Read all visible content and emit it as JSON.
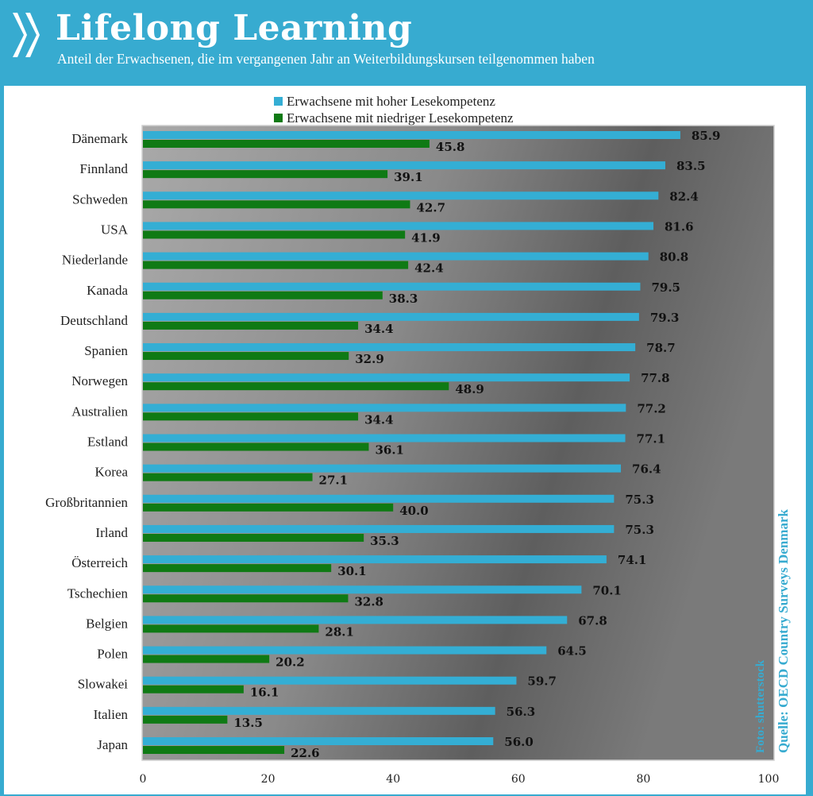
{
  "header": {
    "title": "Lifelong Learning",
    "subtitle": "Anteil der Erwachsenen, die im vergangenen Jahr an Weiterbildungskursen teilgenommen haben",
    "logo": "oecd-chevrons-logo"
  },
  "colors": {
    "brand": "#37abd0",
    "high": "#34aed4",
    "low": "#0f7a14"
  },
  "source": "Quelle: OECD Country Surveys Denmark",
  "photo_credit": "Foto: shutterstock",
  "chart_data": {
    "type": "bar",
    "orientation": "horizontal",
    "title": "Lifelong Learning",
    "categories": [
      "Dänemark",
      "Finnland",
      "Schweden",
      "USA",
      "Niederlande",
      "Kanada",
      "Deutschland",
      "Spanien",
      "Norwegen",
      "Australien",
      "Estland",
      "Korea",
      "Großbritannien",
      "Irland",
      "Österreich",
      "Tschechien",
      "Belgien",
      "Polen",
      "Slowakei",
      "Italien",
      "Japan"
    ],
    "series": [
      {
        "name": "Erwachsene mit hoher Lesekompetenz",
        "values": [
          85.9,
          83.5,
          82.4,
          81.6,
          80.8,
          79.5,
          79.3,
          78.7,
          77.8,
          77.2,
          77.1,
          76.4,
          75.3,
          75.3,
          74.1,
          70.1,
          67.8,
          64.5,
          59.7,
          56.3,
          56.0
        ]
      },
      {
        "name": "Erwachsene mit niedriger Lesekompetenz",
        "values": [
          45.8,
          39.1,
          42.7,
          41.9,
          42.4,
          38.3,
          34.4,
          32.9,
          48.9,
          34.4,
          36.1,
          27.1,
          40.0,
          35.3,
          30.1,
          32.8,
          28.1,
          20.2,
          16.1,
          13.5,
          22.6
        ]
      }
    ],
    "xlim": [
      0,
      100
    ],
    "xticks": [
      "0",
      "20",
      "40",
      "60",
      "80",
      "100"
    ],
    "legend": "top-center"
  }
}
